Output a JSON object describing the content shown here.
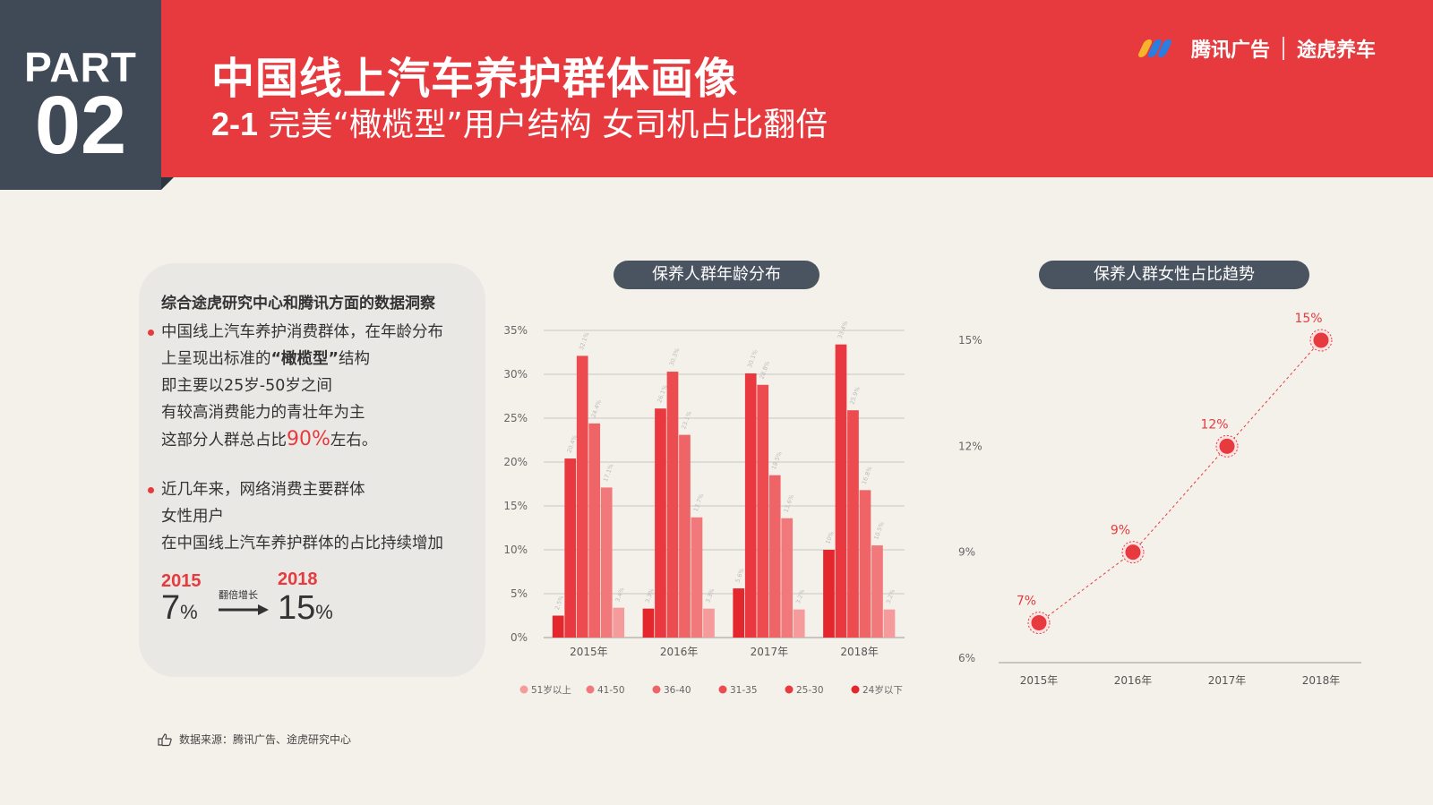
{
  "header": {
    "part_word": "PART",
    "part_num": "02",
    "title": "中国线上汽车养护群体画像",
    "subtitle_num": "2-1",
    "subtitle_text": " 完美“橄榄型”用户结构 女司机占比翻倍",
    "brand_tencent": "腾讯广告",
    "brand_tuhu": "途虎养车",
    "brand_icon_colors": [
      "#f7b32b",
      "#2a7de1",
      "#2a7de1",
      "#e63a3e"
    ]
  },
  "card": {
    "heading": "综合途虎研究中心和腾讯方面的数据洞察",
    "bullet1": {
      "line1": "中国线上汽车养护消费群体，在年龄分布",
      "line2_pre": "上呈现出标准的",
      "line2_bold": "“橄榄型”",
      "line2_post": "结构",
      "line3": "即主要以25岁-50岁之间",
      "line4": "有较高消费能力的青壮年为主",
      "line5_pre": "这部分人群总占比",
      "line5_hl": "90%",
      "line5_post": "左右。"
    },
    "bullet2": {
      "line1": "近几年来，网络消费主要群体",
      "line2": "女性用户",
      "line3": "在中国线上汽车养护群体的占比持续增加"
    },
    "stat": {
      "year_from": "2015",
      "value_from": "7",
      "year_to": "2018",
      "value_to": "15",
      "unit": "%",
      "arrow_label": "翻倍增长"
    }
  },
  "source": {
    "text": "数据来源：腾讯广告、途虎研究中心",
    "icon": "hand-pointer-icon"
  },
  "colors": {
    "accent": "#e63a3e",
    "dark": "#3f4a56"
  },
  "chart_data": [
    {
      "type": "bar",
      "title": "保养人群年龄分布",
      "categories": [
        "2015年",
        "2016年",
        "2017年",
        "2018年"
      ],
      "y_ticks": [
        "0%",
        "5%",
        "10%",
        "15%",
        "20%",
        "25%",
        "30%",
        "35%"
      ],
      "ylim": [
        0,
        35
      ],
      "grid": true,
      "legend_position": "bottom",
      "series": [
        {
          "name": "24岁以下",
          "color": "#e4262d",
          "values": [
            2.5,
            3.3,
            5.6,
            10
          ]
        },
        {
          "name": "25-30",
          "color": "#e9383f",
          "values": [
            20.4,
            26.1,
            30.1,
            33.4
          ]
        },
        {
          "name": "31-35",
          "color": "#ec4b4f",
          "values": [
            32.1,
            30.3,
            28.8,
            25.9
          ]
        },
        {
          "name": "36-40",
          "color": "#ee6467",
          "values": [
            24.4,
            23.1,
            18.5,
            16.8
          ]
        },
        {
          "name": "41-50",
          "color": "#f1797b",
          "values": [
            17.1,
            13.7,
            13.6,
            10.5
          ]
        },
        {
          "name": "51岁以上",
          "color": "#f69b9b",
          "values": [
            3.4,
            3.3,
            3.2,
            3.2
          ]
        }
      ],
      "legend_order": [
        "51岁以上",
        "41-50",
        "36-40",
        "31-35",
        "25-30",
        "24岁以下"
      ]
    },
    {
      "type": "line",
      "title": "保养人群女性占比趋势",
      "categories": [
        "2015年",
        "2016年",
        "2017年",
        "2018年"
      ],
      "values": [
        7,
        9,
        12,
        15
      ],
      "point_labels": [
        "7%",
        "9%",
        "12%",
        "15%"
      ],
      "y_ticks": [
        "6%",
        "9%",
        "12%",
        "15%"
      ],
      "ylim": [
        6,
        15
      ],
      "color": "#e63a3e"
    }
  ]
}
